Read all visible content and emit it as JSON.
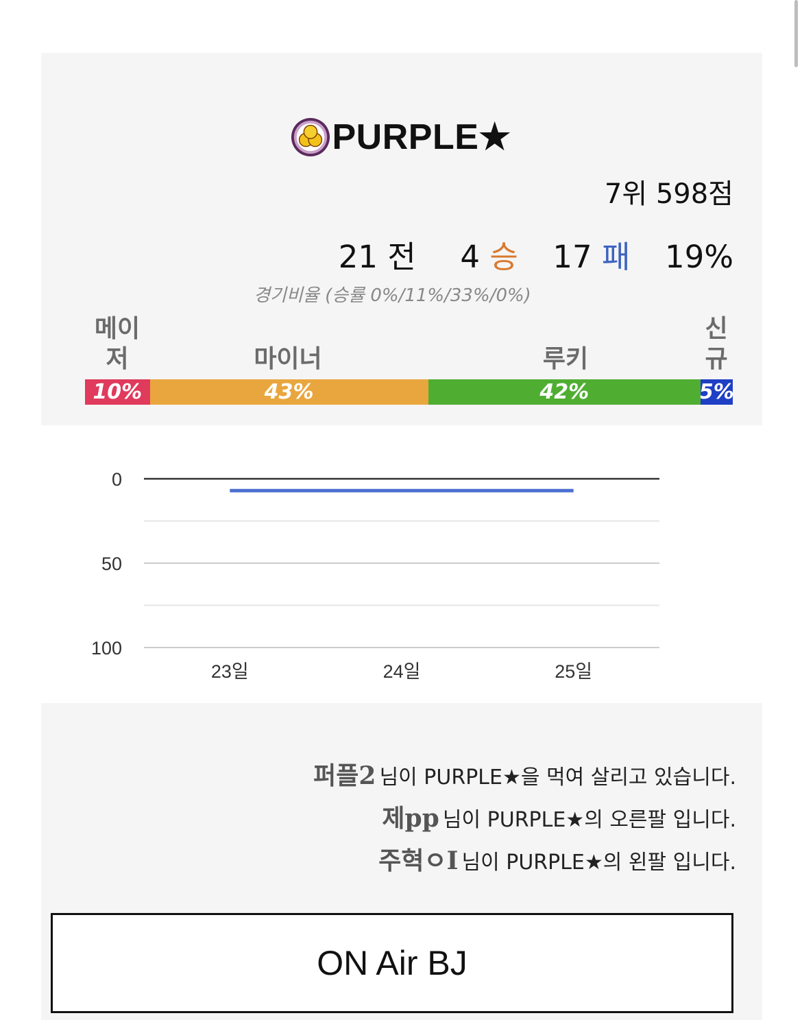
{
  "team": {
    "name": "PURPLE★",
    "rank_text": "7위 598점"
  },
  "record": {
    "games": "21",
    "games_word": "전",
    "wins": "4",
    "wins_word": "승",
    "losses": "17",
    "losses_word": "패",
    "win_rate": "19%"
  },
  "ratio_caption": "경기비율 (승률 0%/11%/33%/0%)",
  "categories": [
    {
      "label": "메이저",
      "percent_text": "10%",
      "percent": 10,
      "color": "#e03a5c"
    },
    {
      "label": "마이너",
      "percent_text": "43%",
      "percent": 43,
      "color": "#e9a63e"
    },
    {
      "label": "루키",
      "percent_text": "42%",
      "percent": 42,
      "color": "#4fae32"
    },
    {
      "label": "신규",
      "percent_text": "5%",
      "percent": 5,
      "color": "#1f3fc4"
    }
  ],
  "chart_data": {
    "type": "line",
    "categories": [
      "23일",
      "24일",
      "25일"
    ],
    "series": [
      {
        "values": [
          7,
          7,
          7
        ],
        "color": "#4a6fcf"
      }
    ],
    "y_ticks": [
      "0",
      "50",
      "100"
    ],
    "ylim": [
      0,
      100
    ],
    "y_reversed": true,
    "grid": true
  },
  "messages": [
    {
      "name": "퍼플2",
      "text": "님이 PURPLE★을 먹여 살리고 있습니다."
    },
    {
      "name": "제pp",
      "text": "님이 PURPLE★의 오른팔 입니다."
    },
    {
      "name": "주혁ㅇI",
      "text": "님이 PURPLE★의 왼팔 입니다."
    }
  ],
  "onair_label": "ON Air BJ",
  "colors": {
    "card_bg": "#f5f5f5",
    "win": "#d9792f",
    "loss": "#3c63c0"
  }
}
